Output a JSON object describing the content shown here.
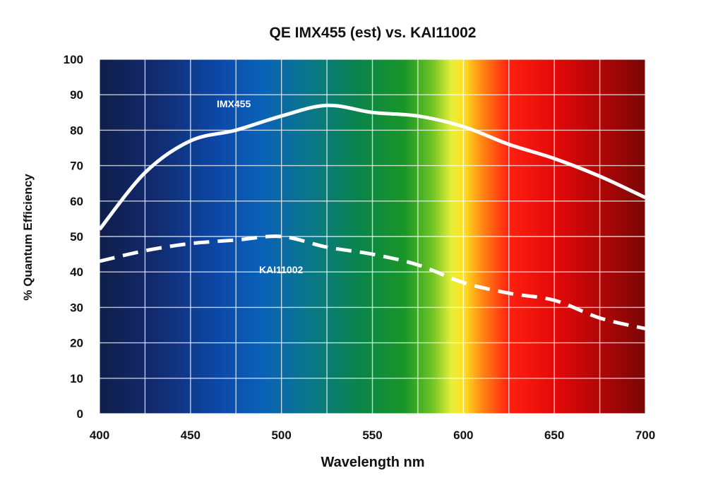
{
  "chart_data": {
    "type": "line",
    "title": "QE IMX455 (est) vs. KAI11002",
    "xlabel": "Wavelength nm",
    "ylabel": "% Quantum Efficiency",
    "xlim": [
      400,
      700
    ],
    "ylim": [
      0,
      100
    ],
    "xticks": [
      400,
      450,
      500,
      550,
      600,
      650,
      700
    ],
    "yticks": [
      0,
      10,
      20,
      30,
      40,
      50,
      60,
      70,
      80,
      90,
      100
    ],
    "x_grid_step": 25,
    "y_grid_step": 10,
    "grid": true,
    "background": "visible-spectrum gradient",
    "series": [
      {
        "name": "IMX455",
        "line_style": "solid",
        "color": "#ffffff",
        "x": [
          400,
          425,
          450,
          475,
          500,
          525,
          550,
          575,
          600,
          625,
          650,
          675,
          700
        ],
        "y": [
          52,
          68,
          77,
          80,
          84,
          87,
          85,
          84,
          81,
          76,
          72,
          67,
          61
        ]
      },
      {
        "name": "KAI11002",
        "line_style": "dashed",
        "color": "#ffffff",
        "x": [
          400,
          425,
          450,
          475,
          500,
          525,
          550,
          575,
          600,
          625,
          650,
          675,
          700
        ],
        "y": [
          43,
          46,
          48,
          49,
          50,
          47,
          45,
          42,
          37,
          34,
          32,
          27,
          24
        ]
      }
    ],
    "annotations": [
      {
        "text": "IMX455",
        "series": "IMX455"
      },
      {
        "text": "KAI11002",
        "series": "KAI11002"
      }
    ]
  }
}
